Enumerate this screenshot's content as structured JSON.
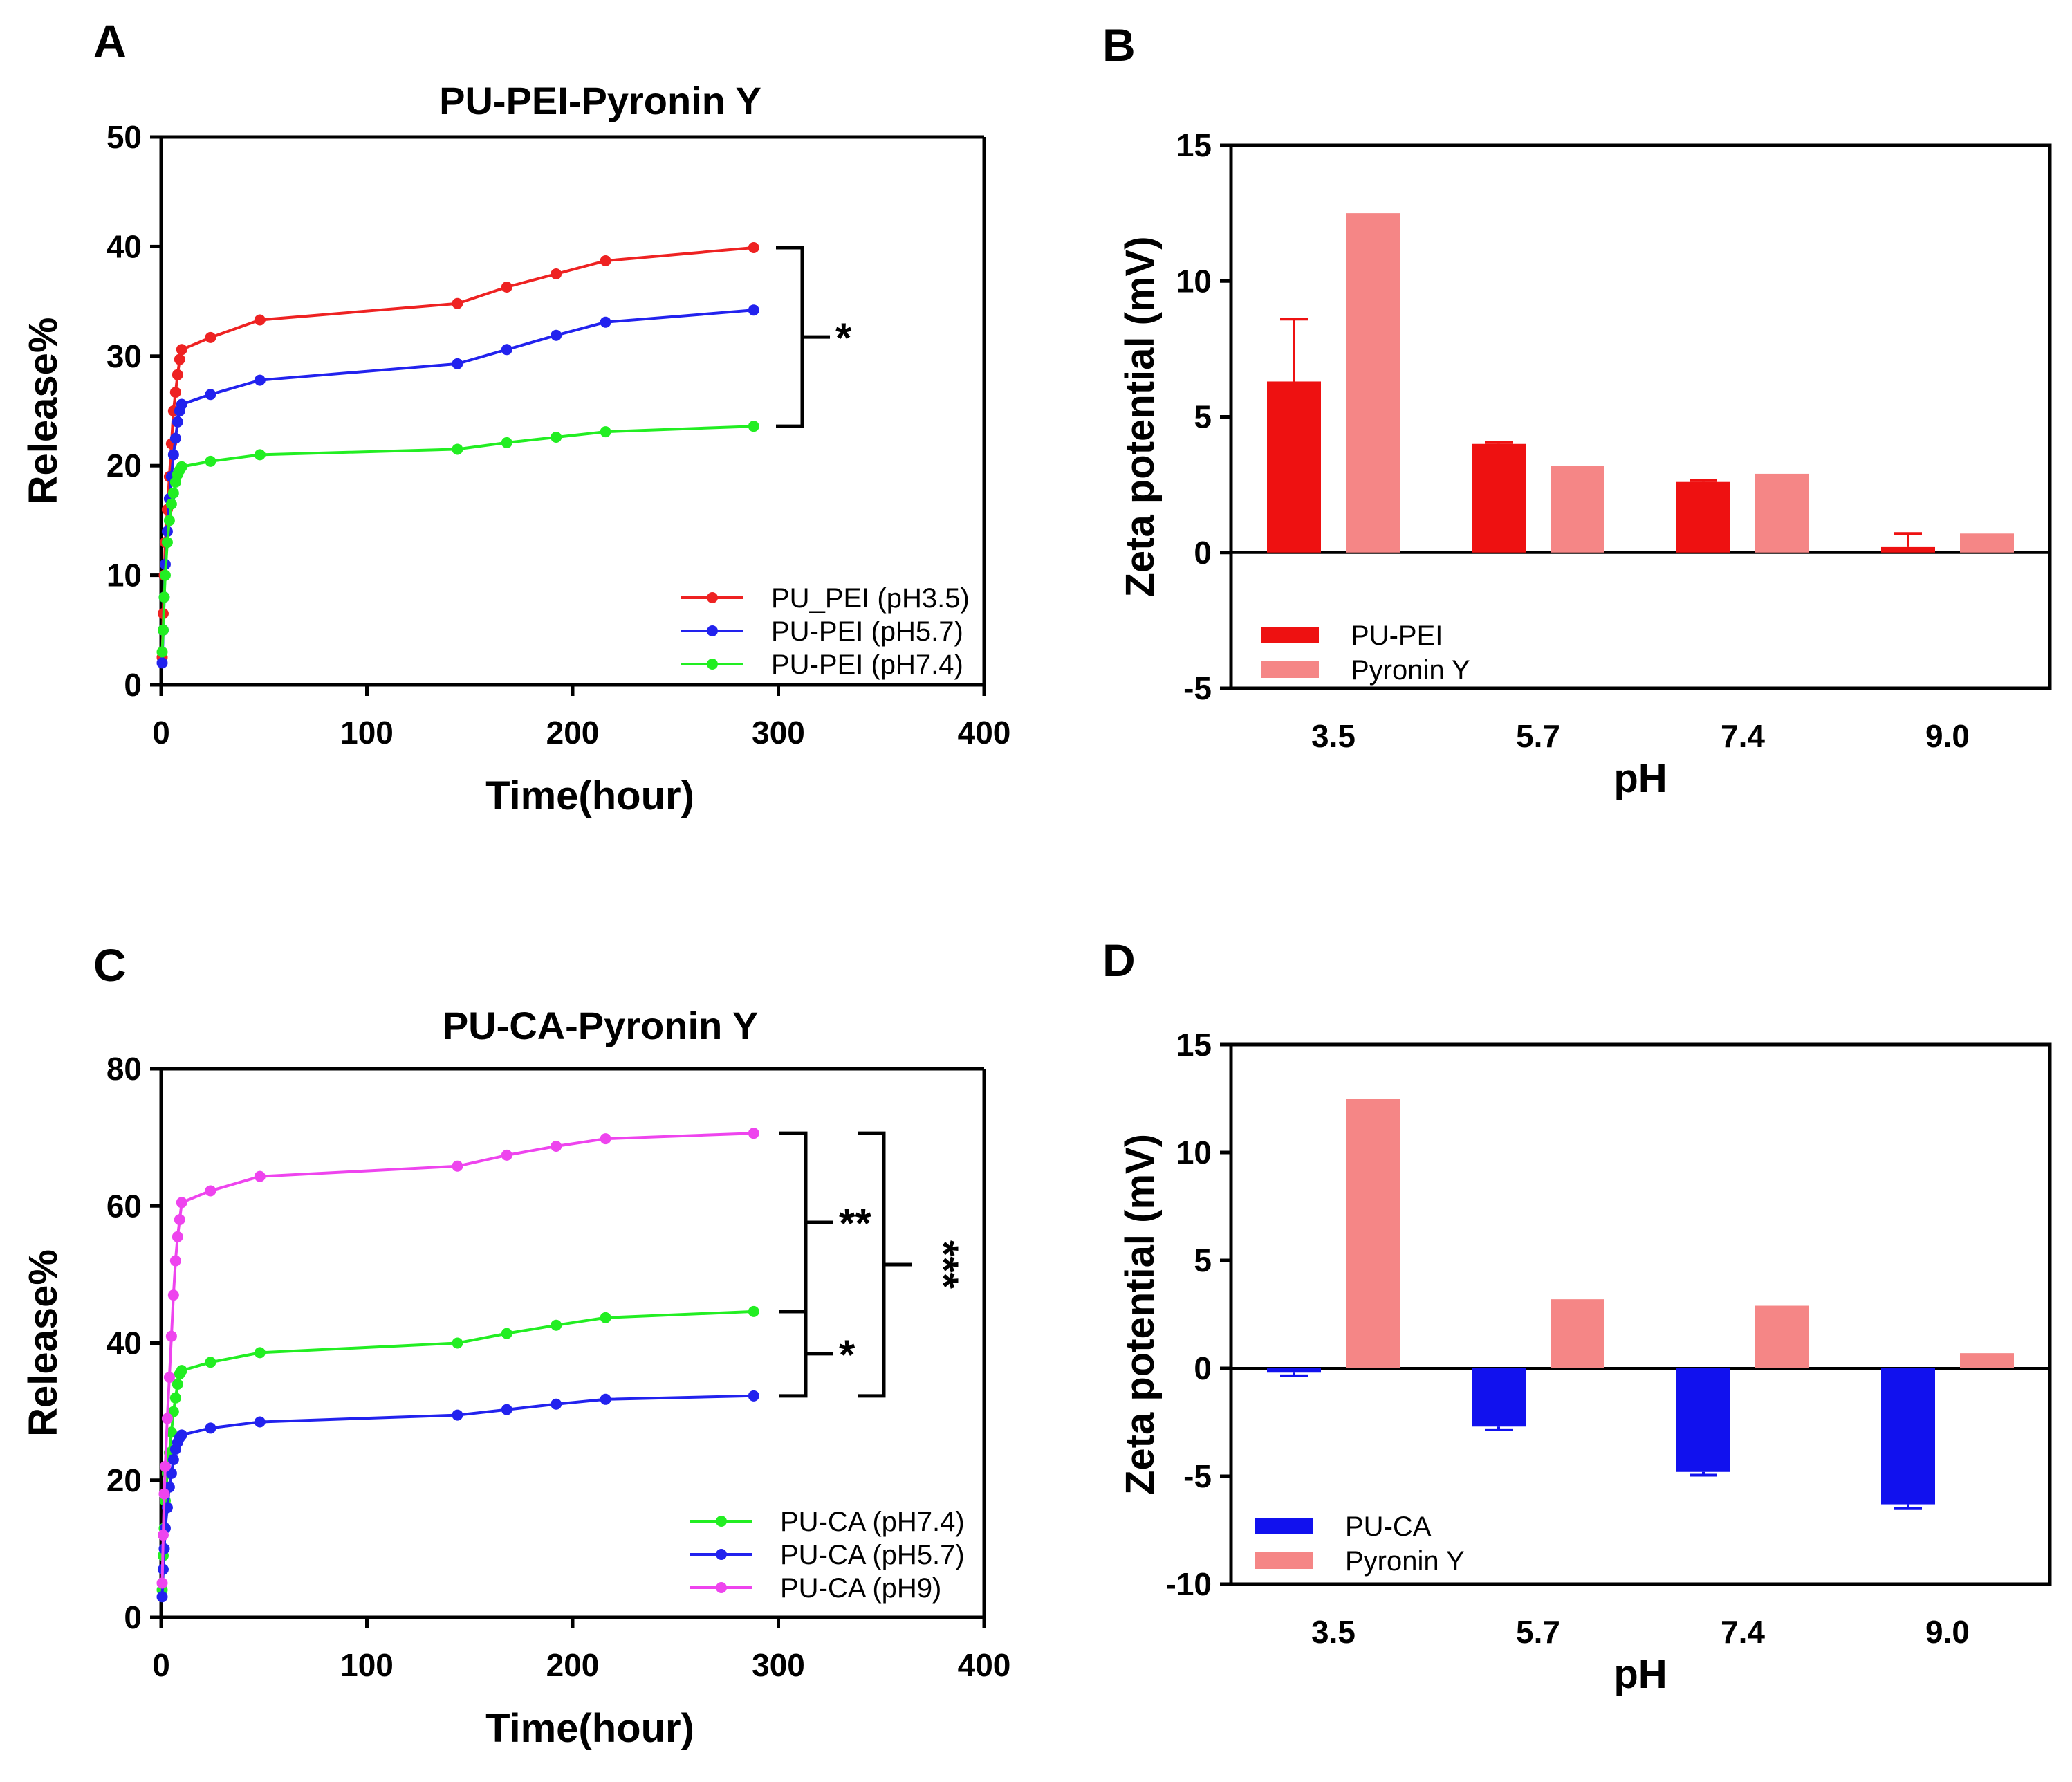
{
  "chart_data": [
    {
      "panel": "A",
      "type": "line",
      "title": "PU-PEI-Pyronin Y",
      "xlabel": "Time(hour)",
      "ylabel": "Release%",
      "xlim": [
        0,
        400
      ],
      "ylim": [
        0,
        50
      ],
      "xticks": [
        "0",
        "100",
        "200",
        "300",
        "400"
      ],
      "yticks": [
        "0",
        "10",
        "20",
        "30",
        "40",
        "50"
      ],
      "legend_position": "bottom-right",
      "x": [
        0.5,
        1,
        1.5,
        2,
        3,
        4,
        5,
        6,
        7,
        8,
        9,
        10,
        24,
        48,
        144,
        168,
        192,
        216,
        288
      ],
      "series": [
        {
          "name": "PU_PEI (pH3.5)",
          "color": "#ee2222",
          "values": [
            2.5,
            6.5,
            10,
            13,
            16,
            19,
            22,
            25,
            26.7,
            28.3,
            29.7,
            30.6,
            31.7,
            33.3,
            34.8,
            36.3,
            37.5,
            38.7,
            39.9
          ]
        },
        {
          "name": "PU-PEI (pH5.7)",
          "color": "#2222ee",
          "values": [
            2,
            5,
            8,
            11,
            14,
            17,
            19,
            21,
            22.5,
            24,
            25,
            25.6,
            26.5,
            27.8,
            29.3,
            30.6,
            31.9,
            33.1,
            34.2
          ]
        },
        {
          "name": "PU-PEI (pH7.4)",
          "color": "#22ee22",
          "values": [
            3,
            5,
            8,
            10,
            13,
            15,
            16.5,
            17.5,
            18.5,
            19.2,
            19.6,
            19.9,
            20.4,
            21,
            21.5,
            22.1,
            22.6,
            23.1,
            23.6
          ]
        }
      ],
      "significance": [
        {
          "label": "*",
          "between": [
            "PU_PEI (pH3.5)",
            "PU-PEI (pH7.4)"
          ]
        }
      ]
    },
    {
      "panel": "B",
      "type": "bar",
      "title": "",
      "xlabel": "pH",
      "ylabel": "Zeta potential (mV)",
      "ylim": [
        -5,
        15
      ],
      "yticks": [
        "-5",
        "0",
        "5",
        "10",
        "15"
      ],
      "categories": [
        "3.5",
        "5.7",
        "7.4",
        "9.0"
      ],
      "legend_position": "bottom-left",
      "series": [
        {
          "name": "PU-PEI",
          "color": "#ee1111",
          "values": [
            6.3,
            4.0,
            2.6,
            0.2
          ],
          "errors": [
            2.3,
            0.05,
            0.05,
            0.5
          ]
        },
        {
          "name": "Pyronin Y",
          "color": "#f58686",
          "values": [
            12.5,
            3.2,
            2.9,
            0.7
          ],
          "errors": [
            0,
            0,
            0,
            0
          ]
        }
      ]
    },
    {
      "panel": "C",
      "type": "line",
      "title": "PU-CA-Pyronin Y",
      "xlabel": "Time(hour)",
      "ylabel": "Release%",
      "xlim": [
        0,
        400
      ],
      "ylim": [
        0,
        80
      ],
      "xticks": [
        "0",
        "100",
        "200",
        "300",
        "400"
      ],
      "yticks": [
        "0",
        "20",
        "40",
        "60",
        "80"
      ],
      "legend_position": "bottom-right",
      "x": [
        0.5,
        1,
        1.5,
        2,
        3,
        4,
        5,
        6,
        7,
        8,
        9,
        10,
        24,
        48,
        144,
        168,
        192,
        216,
        288
      ],
      "series": [
        {
          "name": "PU-CA (pH7.4)",
          "color": "#22ee22",
          "values": [
            4,
            9,
            13,
            17,
            21,
            24,
            27,
            30,
            32,
            34,
            35.5,
            36,
            37.2,
            38.6,
            40,
            41.4,
            42.6,
            43.7,
            44.6
          ]
        },
        {
          "name": "PU-CA (pH5.7)",
          "color": "#2222ee",
          "values": [
            3,
            7,
            10,
            13,
            16,
            19,
            21,
            23,
            24.5,
            25.5,
            26.2,
            26.6,
            27.6,
            28.5,
            29.5,
            30.3,
            31.1,
            31.8,
            32.3
          ]
        },
        {
          "name": "PU-CA (pH9)",
          "color": "#ee44ee",
          "values": [
            5,
            12,
            18,
            22,
            29,
            35,
            41,
            47,
            52,
            55.5,
            58,
            60.5,
            62.2,
            64.3,
            65.8,
            67.4,
            68.7,
            69.8,
            70.6
          ]
        }
      ],
      "significance": [
        {
          "label": "**",
          "between": [
            "PU-CA (pH9)",
            "PU-CA (pH7.4)"
          ]
        },
        {
          "label": "*",
          "between": [
            "PU-CA (pH7.4)",
            "PU-CA (pH5.7)"
          ]
        },
        {
          "label": "***",
          "between": [
            "PU-CA (pH9)",
            "PU-CA (pH5.7)"
          ]
        }
      ]
    },
    {
      "panel": "D",
      "type": "bar",
      "title": "",
      "xlabel": "pH",
      "ylabel": "Zeta potential (mV)",
      "ylim": [
        -10,
        15
      ],
      "yticks": [
        "-10",
        "-5",
        "0",
        "5",
        "10",
        "15"
      ],
      "categories": [
        "3.5",
        "5.7",
        "7.4",
        "9.0"
      ],
      "legend_position": "bottom-left",
      "series": [
        {
          "name": "PU-CA",
          "color": "#1111ee",
          "values": [
            -0.2,
            -2.7,
            -4.8,
            -6.3
          ],
          "errors": [
            0.15,
            0.15,
            0.15,
            0.2
          ]
        },
        {
          "name": "Pyronin Y",
          "color": "#f58686",
          "values": [
            12.5,
            3.2,
            2.9,
            0.7
          ],
          "errors": [
            0,
            0,
            0,
            0
          ]
        }
      ]
    }
  ]
}
